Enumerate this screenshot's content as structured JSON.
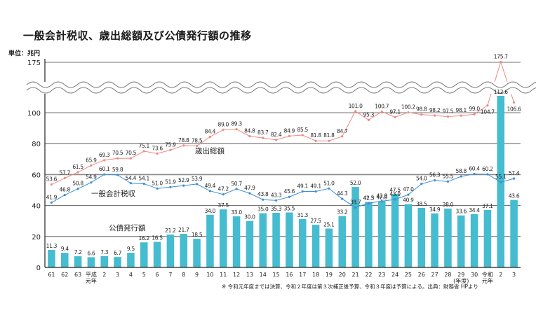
{
  "chart_data": {
    "type": "bar",
    "title": "一般会計税収、歳出総額及び公債発行額の推移",
    "unit_label": "単位：兆円",
    "xlabel": "(年度)",
    "ylabel": "兆円",
    "ylim": [
      0,
      175
    ],
    "axis_break": [
      110,
      170
    ],
    "yticks": [
      "0",
      "20",
      "40",
      "60",
      "80",
      "100",
      "175"
    ],
    "ytick_values": [
      0,
      20,
      40,
      60,
      80,
      100,
      175
    ],
    "grid": true,
    "categories": [
      "61",
      "62",
      "63",
      "平成元年",
      "2",
      "3",
      "4",
      "5",
      "6",
      "7",
      "8",
      "9",
      "10",
      "11",
      "12",
      "13",
      "14",
      "15",
      "16",
      "17",
      "18",
      "19",
      "20",
      "21",
      "22",
      "23",
      "24",
      "25",
      "26",
      "27",
      "28",
      "29",
      "30",
      "令和元年",
      "2",
      "3"
    ],
    "category_labels": [
      [
        "61"
      ],
      [
        "62"
      ],
      [
        "63"
      ],
      [
        "平成",
        "元年"
      ],
      [
        "2"
      ],
      [
        "3"
      ],
      [
        "4"
      ],
      [
        "5"
      ],
      [
        "6"
      ],
      [
        "7"
      ],
      [
        "8"
      ],
      [
        "9"
      ],
      [
        "10"
      ],
      [
        "11"
      ],
      [
        "12"
      ],
      [
        "13"
      ],
      [
        "14"
      ],
      [
        "15"
      ],
      [
        "16"
      ],
      [
        "17"
      ],
      [
        "18"
      ],
      [
        "19"
      ],
      [
        "20"
      ],
      [
        "21"
      ],
      [
        "22"
      ],
      [
        "23"
      ],
      [
        "24"
      ],
      [
        "25"
      ],
      [
        "26"
      ],
      [
        "27"
      ],
      [
        "28"
      ],
      [
        "29",
        "(年度)"
      ],
      [
        "30"
      ],
      [
        "令和",
        "元年"
      ],
      [
        "2"
      ],
      [
        "3"
      ]
    ],
    "series": [
      {
        "name": "公債発行額",
        "kind": "bar",
        "color": "#45bcd0",
        "values": [
          11.3,
          9.4,
          7.2,
          6.6,
          7.3,
          6.7,
          9.5,
          16.2,
          16.5,
          21.2,
          21.7,
          18.5,
          34.0,
          37.5,
          33.0,
          30.0,
          35.0,
          35.3,
          35.5,
          31.3,
          27.5,
          25.1,
          33.2,
          52.0,
          42.3,
          42.8,
          47.5,
          40.9,
          38.5,
          34.9,
          38.0,
          33.6,
          34.4,
          37.1,
          112.6,
          43.6
        ]
      },
      {
        "name": "歳出総額",
        "kind": "line",
        "color": "#f08a80",
        "values": [
          53.6,
          57.7,
          61.5,
          65.9,
          69.3,
          70.5,
          70.5,
          75.1,
          73.6,
          75.9,
          78.8,
          78.5,
          84.4,
          89.0,
          89.3,
          84.8,
          83.7,
          82.4,
          84.9,
          85.5,
          81.8,
          81.8,
          84.7,
          101.0,
          95.3,
          100.7,
          97.1,
          100.2,
          98.8,
          98.2,
          97.5,
          98.1,
          99.0,
          104.7,
          175.7,
          106.6
        ]
      },
      {
        "name": "一般会計税収",
        "kind": "line",
        "color": "#3a8fd6",
        "values": [
          41.9,
          46.8,
          50.8,
          54.9,
          60.1,
          59.8,
          54.4,
          54.1,
          51.0,
          51.9,
          52.9,
          53.9,
          49.4,
          47.2,
          50.7,
          47.9,
          43.8,
          43.3,
          45.6,
          49.1,
          49.1,
          51.0,
          44.3,
          38.7,
          41.5,
          42.8,
          43.9,
          47.0,
          54.0,
          56.3,
          55.5,
          58.8,
          60.4,
          60.2,
          55.1,
          57.4
        ]
      }
    ],
    "annotations": [
      "歳出総額",
      "一般会計税収",
      "公債発行額"
    ],
    "note": "※ 令和元年度までは決算、令和２年度は第３次補正後予算、令和３年度は予算による。出典：財務省 HPより"
  }
}
